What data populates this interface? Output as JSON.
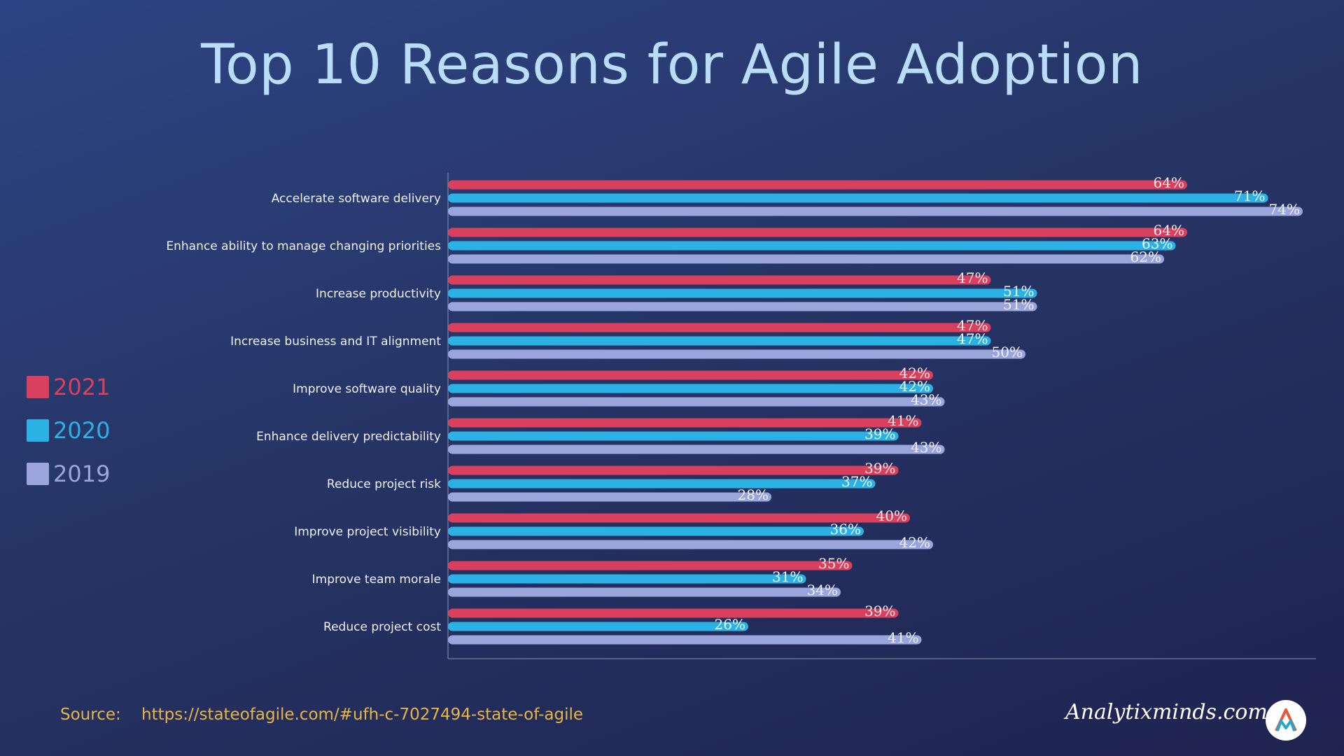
{
  "title": "Top 10 Reasons for Agile Adoption",
  "legend": [
    {
      "label": "2021",
      "color": "#d9405e"
    },
    {
      "label": "2020",
      "color": "#2cb1e4"
    },
    {
      "label": "2019",
      "color": "#9aa6db"
    }
  ],
  "source": {
    "label": "Source:",
    "url": "https://stateofagile.com/#ufh-c-7027494-state-of-agile"
  },
  "brand": "Analytixminds.com",
  "logo_icon": "analytixminds-logo-icon",
  "chart_data": {
    "type": "bar",
    "orientation": "horizontal",
    "title": "Top 10 Reasons for Agile Adoption",
    "xlabel": "",
    "ylabel": "",
    "xlim": [
      0,
      100
    ],
    "value_suffix": "%",
    "grid": false,
    "legend_position": "left",
    "categories": [
      "Accelerate software delivery",
      "Enhance ability to manage changing priorities",
      "Increase productivity",
      "Increase business and IT alignment",
      "Improve software quality",
      "Enhance delivery predictability",
      "Reduce project risk",
      "Improve project visibility",
      "Improve team morale",
      "Reduce project cost"
    ],
    "series": [
      {
        "name": "2021",
        "color": "#d9405e",
        "label_color": "#fbe9ee",
        "values": [
          64,
          64,
          47,
          47,
          42,
          41,
          39,
          40,
          35,
          39
        ]
      },
      {
        "name": "2020",
        "color": "#2cb1e4",
        "label_color": "#e8f7fd",
        "values": [
          71,
          63,
          51,
          47,
          42,
          39,
          37,
          36,
          31,
          26
        ]
      },
      {
        "name": "2019",
        "color": "#9aa6db",
        "label_color": "#eef0fa",
        "values": [
          74,
          62,
          51,
          50,
          43,
          43,
          28,
          42,
          34,
          41
        ]
      }
    ]
  }
}
